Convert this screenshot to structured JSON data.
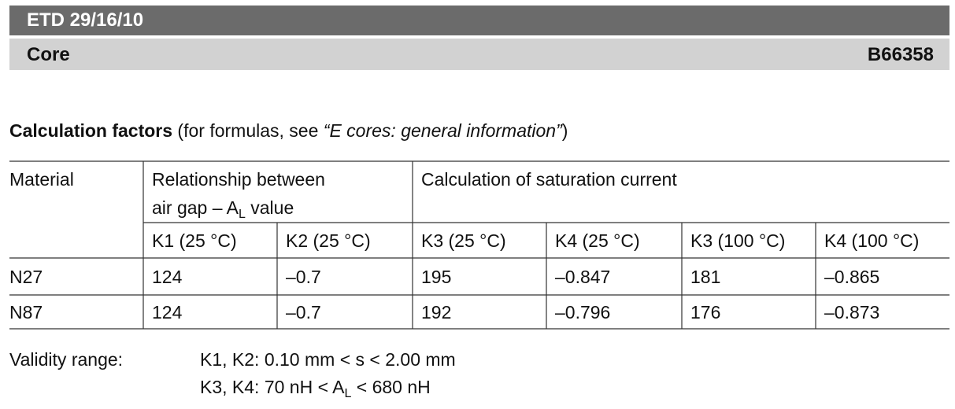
{
  "header": {
    "title": "ETD 29/16/10",
    "subtitle": "Core",
    "code": "B66358"
  },
  "section": {
    "title_bold": "Calculation factors",
    "title_rest": " (for formulas, see ",
    "title_italic": "“E cores: general information”",
    "title_end": ")"
  },
  "table": {
    "material_header": "Material",
    "group1": {
      "line1": "Relationship between",
      "line2_a": "air gap – A",
      "line2_sub": "L",
      "line2_b": " value"
    },
    "group2": "Calculation of saturation current",
    "subheaders": [
      "K1 (25 °C)",
      "K2 (25 °C)",
      "K3 (25 °C)",
      "K4 (25 °C)",
      "K3 (100 °C)",
      "K4 (100 °C)"
    ],
    "rows": [
      [
        "N27",
        "124",
        "–0.7",
        "195",
        "–0.847",
        "181",
        "–0.865"
      ],
      [
        "N87",
        "124",
        "–0.7",
        "192",
        "–0.796",
        "176",
        "–0.873"
      ]
    ]
  },
  "validity": {
    "label": "Validity range:",
    "line1": "K1, K2: 0.10 mm < s < 2.00 mm",
    "line2_a": "K3, K4: 70 nH < A",
    "line2_sub": "L",
    "line2_b": " < 680 nH"
  }
}
